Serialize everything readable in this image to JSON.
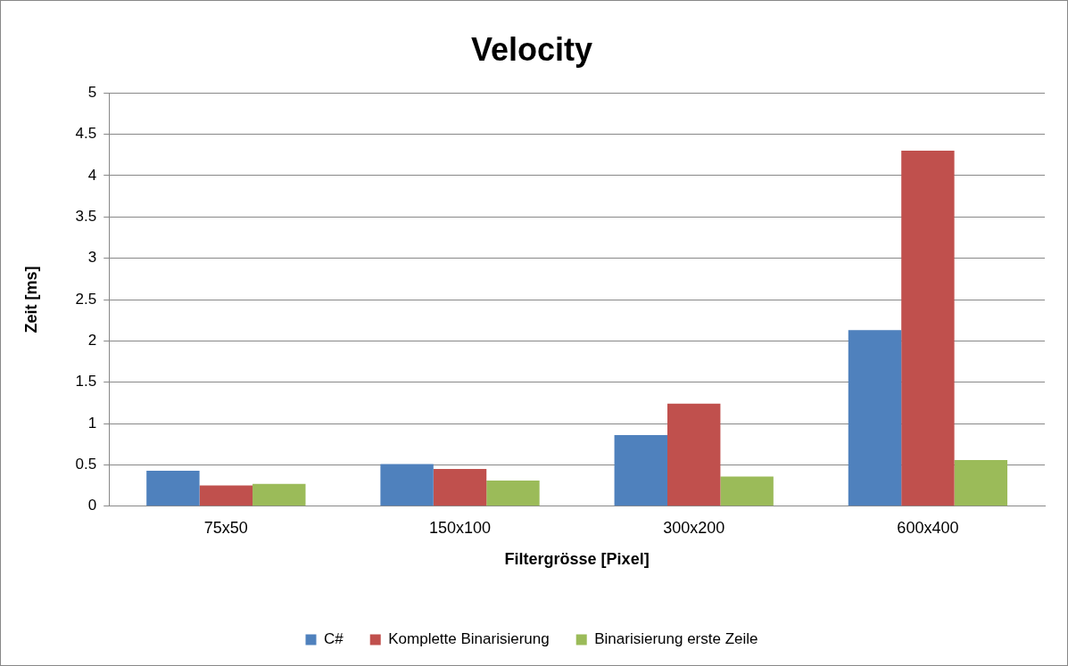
{
  "chart_data": {
    "type": "bar",
    "title": "Velocity",
    "xlabel": "Filtergrösse [Pixel]",
    "ylabel": "Zeit [ms]",
    "categories": [
      "75x50",
      "150x100",
      "300x200",
      "600x400"
    ],
    "series": [
      {
        "name": "C#",
        "color": "#4f81bd",
        "values": [
          0.43,
          0.51,
          0.86,
          2.13
        ]
      },
      {
        "name": "Komplette Binarisierung",
        "color": "#c0504d",
        "values": [
          0.25,
          0.45,
          1.24,
          4.3
        ]
      },
      {
        "name": "Binarisierung erste Zeile",
        "color": "#9bbb59",
        "values": [
          0.27,
          0.31,
          0.36,
          0.56
        ]
      }
    ],
    "ylim": [
      0,
      5
    ],
    "yticks": [
      0,
      0.5,
      1,
      1.5,
      2,
      2.5,
      3,
      3.5,
      4,
      4.5,
      5
    ],
    "grid": "y",
    "legend": "bottom"
  }
}
